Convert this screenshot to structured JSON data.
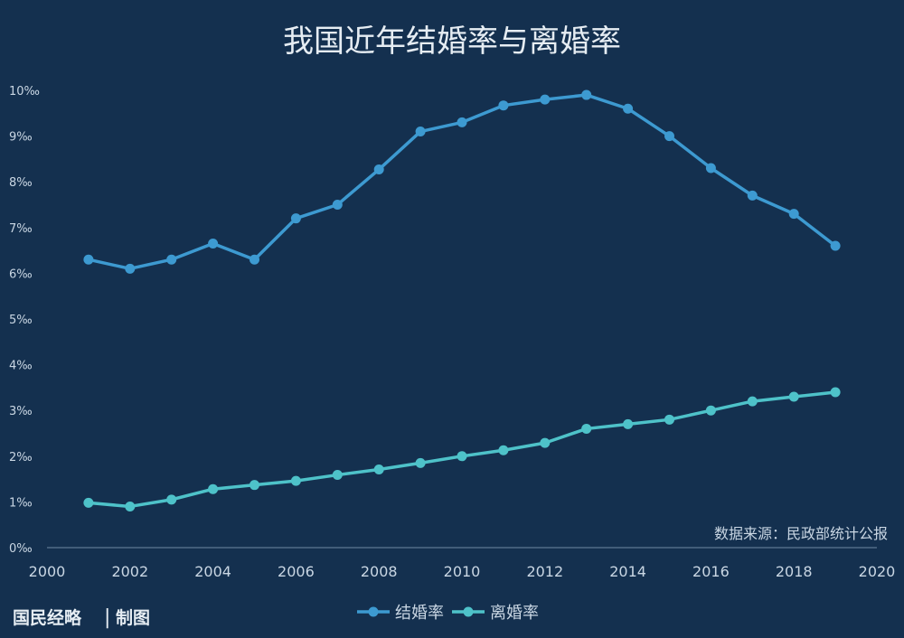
{
  "colors": {
    "background": "#14304f",
    "marriage": "#3d9ad1",
    "divorce": "#4ec2c9",
    "text": "#c9d6e3",
    "title": "#e6edf3",
    "axis": "#6f8aa3"
  },
  "footer": {
    "source": "数据来源：民政部统计公报",
    "brand": "国民经略",
    "separator": "|",
    "credit": "制图"
  },
  "chart_data": {
    "type": "line",
    "title": "我国近年结婚率与离婚率",
    "xlabel": "",
    "ylabel": "",
    "xlim": [
      2000,
      2020
    ],
    "ylim": [
      0,
      10
    ],
    "x_ticks": [
      "2000",
      "2002",
      "2004",
      "2006",
      "2008",
      "2010",
      "2012",
      "2014",
      "2016",
      "2018",
      "2020"
    ],
    "y_ticks": [
      "0‰",
      "1‰",
      "2‰",
      "3‰",
      "4‰",
      "5‰",
      "6‰",
      "7‰",
      "8‰",
      "9‰",
      "10‰"
    ],
    "grid": false,
    "legend_position": "bottom-center",
    "x": [
      2001,
      2002,
      2003,
      2004,
      2005,
      2006,
      2007,
      2008,
      2009,
      2010,
      2011,
      2012,
      2013,
      2014,
      2015,
      2016,
      2017,
      2018,
      2019
    ],
    "series": [
      {
        "name": "结婚率",
        "color": "#3d9ad1",
        "values": [
          6.3,
          6.1,
          6.3,
          6.65,
          6.3,
          7.2,
          7.5,
          8.27,
          9.1,
          9.3,
          9.67,
          9.8,
          9.9,
          9.6,
          9.0,
          8.3,
          7.7,
          7.3,
          6.6
        ]
      },
      {
        "name": "离婚率",
        "color": "#4ec2c9",
        "values": [
          0.98,
          0.9,
          1.05,
          1.28,
          1.37,
          1.46,
          1.59,
          1.71,
          1.85,
          2.0,
          2.13,
          2.29,
          2.6,
          2.7,
          2.8,
          3.0,
          3.2,
          3.3,
          3.4
        ]
      }
    ]
  }
}
